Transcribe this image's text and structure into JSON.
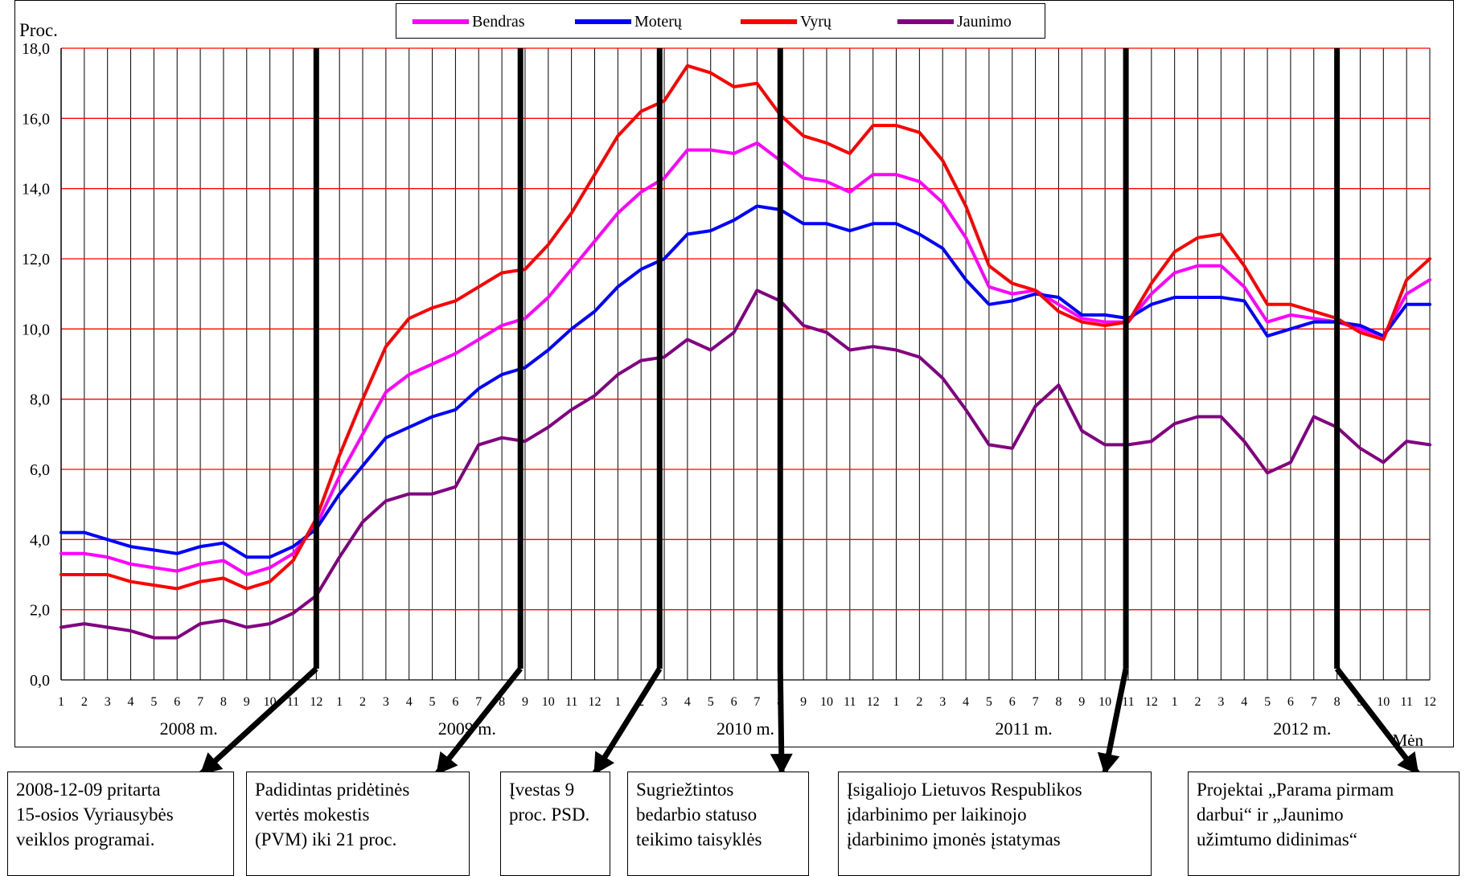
{
  "chart_data": {
    "type": "line",
    "ylabel": "Proc.",
    "xlabel": "Mėn",
    "ylim": [
      0,
      18
    ],
    "yticks": [
      "0,0",
      "2,0",
      "4,0",
      "6,0",
      "8,0",
      "10,0",
      "12,0",
      "14,0",
      "16,0",
      "18,0"
    ],
    "months": [
      "1",
      "2",
      "3",
      "4",
      "5",
      "6",
      "7",
      "8",
      "9",
      "10",
      "11",
      "12"
    ],
    "years": [
      "2008 m.",
      "2009 m.",
      "2010 m.",
      "2011 m.",
      "2012 m."
    ],
    "grid": true,
    "legend_position": "top",
    "series": [
      {
        "name": "Bendras",
        "color": "#ff00ff",
        "values": [
          3.6,
          3.6,
          3.5,
          3.3,
          3.2,
          3.1,
          3.3,
          3.4,
          3.0,
          3.2,
          3.6,
          4.4,
          5.8,
          7.0,
          8.2,
          8.7,
          9.0,
          9.3,
          9.7,
          10.1,
          10.3,
          10.9,
          11.7,
          12.5,
          13.3,
          13.9,
          14.3,
          15.1,
          15.1,
          15.0,
          15.3,
          14.8,
          14.3,
          14.2,
          13.9,
          14.4,
          14.4,
          14.2,
          13.6,
          12.6,
          11.2,
          11.0,
          11.1,
          10.7,
          10.3,
          10.2,
          10.2,
          11.0,
          11.6,
          11.8,
          11.8,
          11.2,
          10.2,
          10.4,
          10.3,
          10.2,
          10.0,
          9.8,
          11.0,
          11.4
        ]
      },
      {
        "name": "Moterų",
        "color": "#0000ff",
        "values": [
          4.2,
          4.2,
          4.0,
          3.8,
          3.7,
          3.6,
          3.8,
          3.9,
          3.5,
          3.5,
          3.8,
          4.3,
          5.3,
          6.1,
          6.9,
          7.2,
          7.5,
          7.7,
          8.3,
          8.7,
          8.9,
          9.4,
          10.0,
          10.5,
          11.2,
          11.7,
          12.0,
          12.7,
          12.8,
          13.1,
          13.5,
          13.4,
          13.0,
          13.0,
          12.8,
          13.0,
          13.0,
          12.7,
          12.3,
          11.4,
          10.7,
          10.8,
          11.0,
          10.9,
          10.4,
          10.4,
          10.3,
          10.7,
          10.9,
          10.9,
          10.9,
          10.8,
          9.8,
          10.0,
          10.2,
          10.2,
          10.1,
          9.8,
          10.7,
          10.7
        ]
      },
      {
        "name": "Vyrų",
        "color": "#ff0000",
        "values": [
          3.0,
          3.0,
          3.0,
          2.8,
          2.7,
          2.6,
          2.8,
          2.9,
          2.6,
          2.8,
          3.4,
          4.6,
          6.4,
          8.0,
          9.5,
          10.3,
          10.6,
          10.8,
          11.2,
          11.6,
          11.7,
          12.4,
          13.3,
          14.4,
          15.5,
          16.2,
          16.5,
          17.5,
          17.3,
          16.9,
          17.0,
          16.1,
          15.5,
          15.3,
          15.0,
          15.8,
          15.8,
          15.6,
          14.8,
          13.5,
          11.8,
          11.3,
          11.1,
          10.5,
          10.2,
          10.1,
          10.2,
          11.3,
          12.2,
          12.6,
          12.7,
          11.8,
          10.7,
          10.7,
          10.5,
          10.3,
          9.9,
          9.7,
          11.4,
          12.0
        ]
      },
      {
        "name": "Jaunimo",
        "color": "#800080",
        "values": [
          1.5,
          1.6,
          1.5,
          1.4,
          1.2,
          1.2,
          1.6,
          1.7,
          1.5,
          1.6,
          1.9,
          2.4,
          3.5,
          4.5,
          5.1,
          5.3,
          5.3,
          5.5,
          6.7,
          6.9,
          6.8,
          7.2,
          7.7,
          8.1,
          8.7,
          9.1,
          9.2,
          9.7,
          9.4,
          9.9,
          11.1,
          10.8,
          10.1,
          9.9,
          9.4,
          9.5,
          9.4,
          9.2,
          8.6,
          7.7,
          6.7,
          6.6,
          7.8,
          8.4,
          7.1,
          6.7,
          6.7,
          6.8,
          7.3,
          7.5,
          7.5,
          6.8,
          5.9,
          6.2,
          7.5,
          7.2,
          6.6,
          6.2,
          6.8,
          6.7
        ]
      }
    ],
    "events": [
      {
        "month_index": 11,
        "text": [
          "2008-12-09 pritarta",
          "15-osios Vyriausybės",
          "veiklos programai."
        ]
      },
      {
        "month_index": 19.8,
        "text": [
          "Padidintas pridėtinės",
          "vertės mokestis",
          "(PVM) iki 21 proc."
        ]
      },
      {
        "month_index": 25.8,
        "text": [
          "Įvestas 9",
          "proc. PSD."
        ]
      },
      {
        "month_index": 31,
        "text": [
          "Sugriežtintos",
          "bedarbio statuso",
          "teikimo taisyklės"
        ]
      },
      {
        "month_index": 45.9,
        "text": [
          "Įsigaliojo Lietuvos Respublikos",
          "įdarbinimo per laikinojo",
          "įdarbinimo įmonės įstatymas"
        ]
      },
      {
        "month_index": 55,
        "text": [
          "Projektai „Parama pirmam",
          "darbui“ ir „Jaunimo",
          "užimtumo didinimas“"
        ]
      }
    ]
  }
}
